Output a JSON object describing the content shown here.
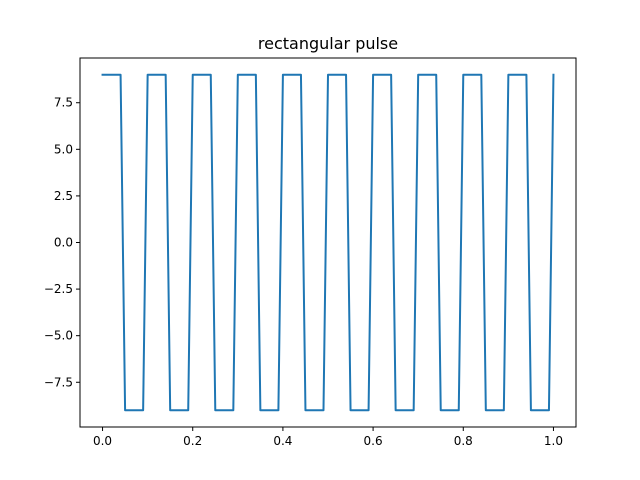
{
  "chart_data": {
    "type": "line",
    "title": "rectangular pulse",
    "xlabel": "",
    "ylabel": "",
    "xlim": [
      -0.05,
      1.05
    ],
    "ylim": [
      -9.9,
      9.9
    ],
    "grid": false,
    "x_ticks": [
      {
        "value": 0.0,
        "label": "0.0"
      },
      {
        "value": 0.2,
        "label": "0.2"
      },
      {
        "value": 0.4,
        "label": "0.4"
      },
      {
        "value": 0.6,
        "label": "0.6"
      },
      {
        "value": 0.8,
        "label": "0.8"
      },
      {
        "value": 1.0,
        "label": "1.0"
      }
    ],
    "y_ticks": [
      {
        "value": 7.5,
        "label": "7.5"
      },
      {
        "value": 5.0,
        "label": "5.0"
      },
      {
        "value": 2.5,
        "label": "2.5"
      },
      {
        "value": 0.0,
        "label": "0.0"
      },
      {
        "value": -2.5,
        "label": "−2.5"
      },
      {
        "value": -5.0,
        "label": "−5.0"
      },
      {
        "value": -7.5,
        "label": "−7.5"
      }
    ],
    "series": [
      {
        "color": "#1f77b4",
        "x": [
          0.0,
          0.04,
          0.05,
          0.09,
          0.1,
          0.14,
          0.15,
          0.19,
          0.2,
          0.24,
          0.25,
          0.29,
          0.3,
          0.34,
          0.35,
          0.39,
          0.4,
          0.44,
          0.45,
          0.49,
          0.5,
          0.54,
          0.55,
          0.59,
          0.6,
          0.64,
          0.65,
          0.69,
          0.7,
          0.74,
          0.75,
          0.79,
          0.8,
          0.84,
          0.85,
          0.89,
          0.9,
          0.94,
          0.95,
          0.99,
          1.0
        ],
        "y": [
          9,
          9,
          -9,
          -9,
          9,
          9,
          -9,
          -9,
          9,
          9,
          -9,
          -9,
          9,
          9,
          -9,
          -9,
          9,
          9,
          -9,
          -9,
          9,
          9,
          -9,
          -9,
          9,
          9,
          -9,
          -9,
          9,
          9,
          -9,
          -9,
          9,
          9,
          -9,
          -9,
          9,
          9,
          -9,
          -9,
          9
        ]
      }
    ]
  }
}
